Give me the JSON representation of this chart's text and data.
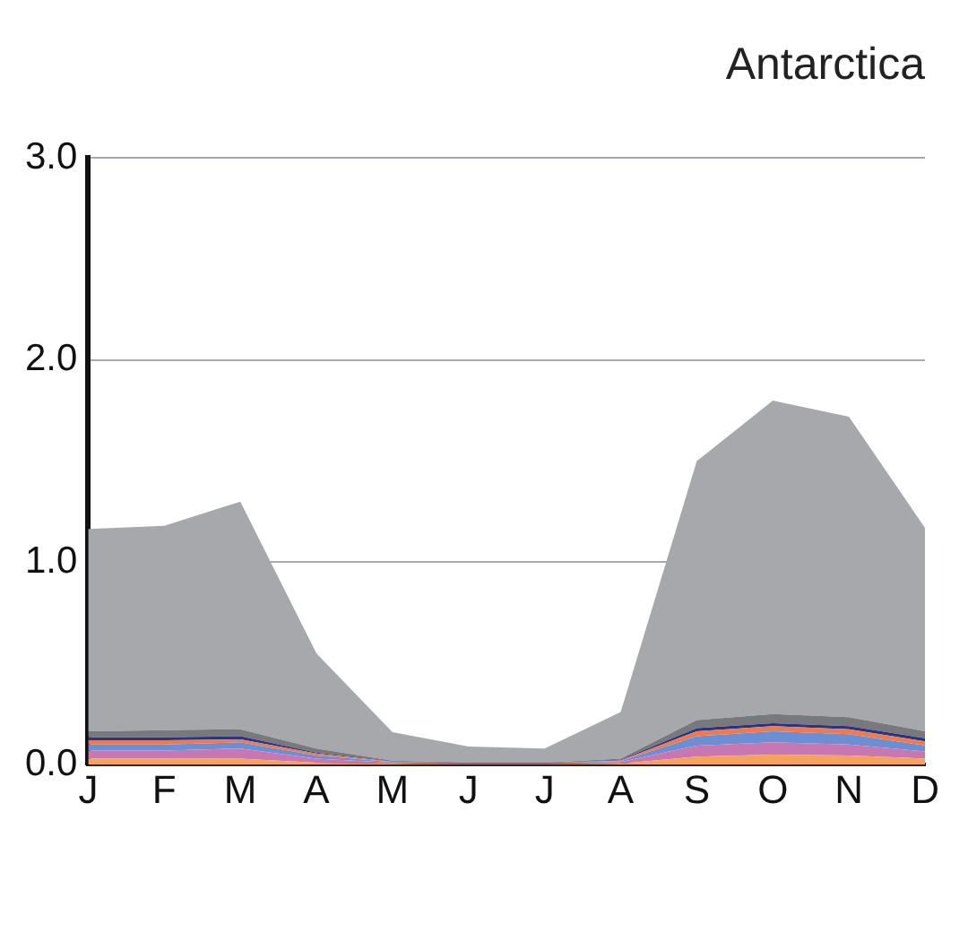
{
  "chart_data": {
    "type": "area",
    "title": "Antarctica",
    "stacked": true,
    "categories": [
      "J",
      "F",
      "M",
      "A",
      "M",
      "J",
      "J",
      "A",
      "S",
      "O",
      "N",
      "D"
    ],
    "series": [
      {
        "color": "#f5a25c",
        "values": [
          0.03,
          0.03,
          0.03,
          0.01,
          0.005,
          0.002,
          0.002,
          0.005,
          0.04,
          0.05,
          0.045,
          0.03
        ]
      },
      {
        "color": "#c777b2",
        "values": [
          0.04,
          0.04,
          0.05,
          0.02,
          0.005,
          0.002,
          0.002,
          0.008,
          0.054,
          0.06,
          0.055,
          0.035
        ]
      },
      {
        "color": "#6b8fd2",
        "values": [
          0.03,
          0.03,
          0.03,
          0.015,
          0.003,
          0.002,
          0.002,
          0.005,
          0.046,
          0.055,
          0.05,
          0.03
        ]
      },
      {
        "color": "#f07a4e",
        "values": [
          0.02,
          0.02,
          0.015,
          0.01,
          0.002,
          0.001,
          0.001,
          0.003,
          0.025,
          0.025,
          0.025,
          0.02
        ]
      },
      {
        "color": "#283580",
        "values": [
          0.015,
          0.015,
          0.015,
          0.005,
          0.002,
          0.001,
          0.001,
          0.003,
          0.015,
          0.015,
          0.015,
          0.015
        ]
      },
      {
        "color": "#77797d",
        "values": [
          0.03,
          0.035,
          0.035,
          0.02,
          0.003,
          0.002,
          0.002,
          0.006,
          0.04,
          0.045,
          0.045,
          0.035
        ]
      },
      {
        "color": "#a7a8ac",
        "values": [
          1.0,
          1.01,
          1.125,
          0.47,
          0.14,
          0.08,
          0.07,
          0.23,
          1.28,
          1.55,
          1.485,
          1.005
        ]
      }
    ],
    "ylim": [
      0,
      3
    ],
    "yticks": [
      {
        "value": 0,
        "label": "0.0"
      },
      {
        "value": 1,
        "label": "1.0"
      },
      {
        "value": 2,
        "label": "2.0"
      },
      {
        "value": 3,
        "label": "3.0"
      }
    ],
    "grid": "y",
    "legend": false
  }
}
